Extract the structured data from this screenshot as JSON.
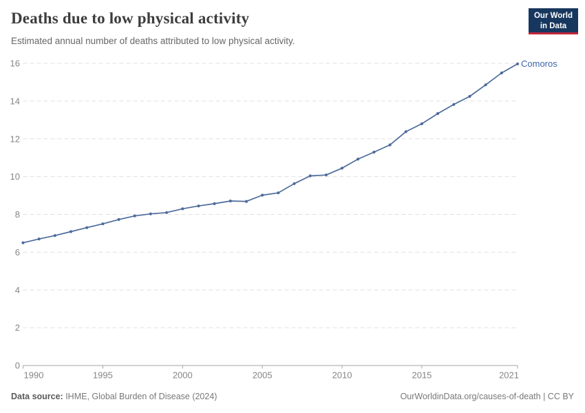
{
  "header": {
    "title": "Deaths due to low physical activity",
    "subtitle": "Estimated annual number of deaths attributed to low physical activity.",
    "logo": {
      "line1": "Our World",
      "line2": "in Data",
      "bg_color": "#18375e",
      "accent_color": "#c0243c"
    }
  },
  "chart_data": {
    "type": "line",
    "title": "Deaths due to low physical activity",
    "x": [
      1990,
      1991,
      1992,
      1993,
      1994,
      1995,
      1996,
      1997,
      1998,
      1999,
      2000,
      2001,
      2002,
      2003,
      2004,
      2005,
      2006,
      2007,
      2008,
      2009,
      2010,
      2011,
      2012,
      2013,
      2014,
      2015,
      2016,
      2017,
      2018,
      2019,
      2020,
      2021
    ],
    "series": [
      {
        "name": "Comoros",
        "color": "#4c6a9c",
        "values": [
          6.5,
          6.7,
          6.88,
          7.09,
          7.3,
          7.5,
          7.73,
          7.92,
          8.03,
          8.1,
          8.3,
          8.45,
          8.57,
          8.71,
          8.69,
          9.02,
          9.14,
          9.63,
          10.04,
          10.09,
          10.45,
          10.93,
          11.3,
          11.68,
          12.38,
          12.8,
          13.34,
          13.82,
          14.25,
          14.86,
          15.49,
          15.97
        ]
      }
    ],
    "x_ticks": [
      1990,
      1995,
      2000,
      2005,
      2010,
      2015,
      2021
    ],
    "y_ticks": [
      0,
      2,
      4,
      6,
      8,
      10,
      12,
      14,
      16
    ],
    "xlim": [
      1990,
      2021
    ],
    "ylim": [
      0,
      16
    ],
    "grid": "horizontal-dashed",
    "legend_position": "end-of-line",
    "axis_label_color": "#858585",
    "gridline_color": "#e0e0e0",
    "axis_line_color": "#a3a3a3"
  },
  "footer": {
    "source_label": "Data source:",
    "source_text": " IHME, Global Burden of Disease (2024)",
    "link_text": "OurWorldinData.org/causes-of-death | CC BY"
  }
}
